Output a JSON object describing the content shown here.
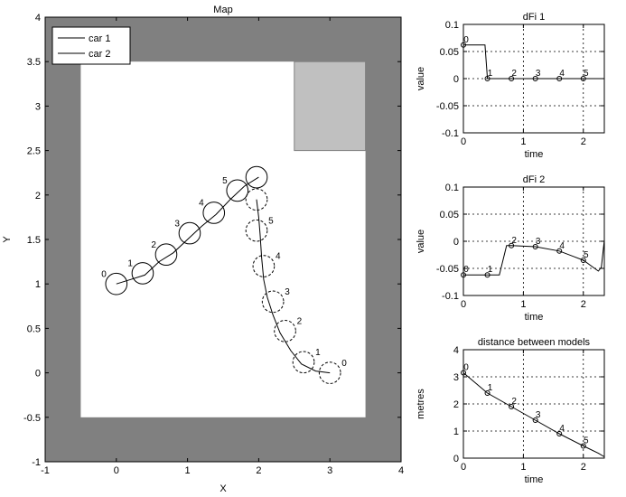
{
  "chart_data": [
    {
      "type": "line",
      "title": "Map",
      "xlabel": "X",
      "ylabel": "Y",
      "xlim": [
        -1,
        4
      ],
      "ylim": [
        -1,
        4
      ],
      "xticks": [
        "-1",
        "0",
        "1",
        "2",
        "3",
        "4"
      ],
      "yticks": [
        "-1",
        "-0.5",
        "0",
        "0.5",
        "1",
        "1.5",
        "2",
        "2.5",
        "3",
        "3.5",
        "4"
      ],
      "grid": false,
      "legend": "top-left",
      "colors": {
        "wall": "#808080",
        "obstacle": "#c0c0c0",
        "floor": "#ffffff"
      },
      "outer_wall": [
        -1,
        -1,
        4,
        4
      ],
      "free_area": [
        -0.5,
        -0.5,
        3.5,
        3.5
      ],
      "obstacle": [
        2.5,
        2.5,
        3.5,
        3.5
      ],
      "marker_radius": 0.15,
      "series": [
        {
          "name": "car 1",
          "style": "solid",
          "path": [
            [
              0,
              1
            ],
            [
              0.2,
              1.05
            ],
            [
              0.4,
              1.1
            ],
            [
              0.6,
              1.25
            ],
            [
              0.8,
              1.35
            ],
            [
              1.0,
              1.5
            ],
            [
              1.2,
              1.65
            ],
            [
              1.4,
              1.78
            ],
            [
              1.6,
              1.95
            ],
            [
              1.8,
              2.1
            ],
            [
              2.0,
              2.2
            ]
          ],
          "markers": [
            {
              "label": "0",
              "x": 0.0,
              "y": 1.0
            },
            {
              "label": "1",
              "x": 0.37,
              "y": 1.12
            },
            {
              "label": "2",
              "x": 0.7,
              "y": 1.33
            },
            {
              "label": "3",
              "x": 1.03,
              "y": 1.57
            },
            {
              "label": "4",
              "x": 1.37,
              "y": 1.8
            },
            {
              "label": "5",
              "x": 1.7,
              "y": 2.05
            },
            {
              "label": "",
              "x": 1.97,
              "y": 2.2
            }
          ]
        },
        {
          "name": "car 2",
          "style": "dashed",
          "path": [
            [
              3,
              0
            ],
            [
              2.8,
              0.02
            ],
            [
              2.6,
              0.1
            ],
            [
              2.45,
              0.25
            ],
            [
              2.3,
              0.45
            ],
            [
              2.2,
              0.65
            ],
            [
              2.12,
              0.85
            ],
            [
              2.07,
              1.05
            ],
            [
              2.04,
              1.3
            ],
            [
              2.02,
              1.55
            ],
            [
              2.0,
              1.75
            ],
            [
              1.97,
              1.95
            ]
          ],
          "markers": [
            {
              "label": "0",
              "x": 3.0,
              "y": 0.0
            },
            {
              "label": "1",
              "x": 2.63,
              "y": 0.12
            },
            {
              "label": "2",
              "x": 2.37,
              "y": 0.47
            },
            {
              "label": "3",
              "x": 2.2,
              "y": 0.8
            },
            {
              "label": "4",
              "x": 2.07,
              "y": 1.2
            },
            {
              "label": "5",
              "x": 1.97,
              "y": 1.6
            },
            {
              "label": "",
              "x": 1.97,
              "y": 1.95
            }
          ]
        }
      ]
    },
    {
      "type": "line",
      "title": "dFi 1",
      "xlabel": "time",
      "ylabel": "value",
      "xlim": [
        0,
        2.35
      ],
      "ylim": [
        -0.1,
        0.1
      ],
      "xticks": [
        "0",
        "1",
        "2"
      ],
      "yticks": [
        "-0.1",
        "-0.05",
        "0",
        "0.05",
        "0.1"
      ],
      "grid": true,
      "series": [
        {
          "x": [
            0,
            0.36,
            0.4,
            2.35
          ],
          "values": [
            0.062,
            0.062,
            0,
            0
          ]
        }
      ],
      "markers": [
        {
          "label": "0",
          "x": 0.0,
          "y": 0.062
        },
        {
          "label": "1",
          "x": 0.4,
          "y": 0
        },
        {
          "label": "2",
          "x": 0.8,
          "y": 0
        },
        {
          "label": "3",
          "x": 1.2,
          "y": 0
        },
        {
          "label": "4",
          "x": 1.6,
          "y": 0
        },
        {
          "label": "5",
          "x": 2.0,
          "y": 0
        }
      ]
    },
    {
      "type": "line",
      "title": "dFi 2",
      "xlabel": "time",
      "ylabel": "value",
      "xlim": [
        0,
        2.35
      ],
      "ylim": [
        -0.1,
        0.1
      ],
      "xticks": [
        "0",
        "1",
        "2"
      ],
      "yticks": [
        "-0.1",
        "-0.05",
        "0",
        "0.05",
        "0.1"
      ],
      "grid": true,
      "series": [
        {
          "x": [
            0,
            0.6,
            0.72,
            0.8,
            1.2,
            1.6,
            2.0,
            2.25,
            2.3,
            2.35
          ],
          "values": [
            -0.062,
            -0.062,
            -0.008,
            -0.008,
            -0.01,
            -0.018,
            -0.035,
            -0.055,
            -0.048,
            0.002
          ]
        }
      ],
      "markers": [
        {
          "label": "0",
          "x": 0.0,
          "y": -0.062
        },
        {
          "label": "1",
          "x": 0.4,
          "y": -0.062
        },
        {
          "label": "2",
          "x": 0.8,
          "y": -0.008
        },
        {
          "label": "3",
          "x": 1.2,
          "y": -0.01
        },
        {
          "label": "4",
          "x": 1.6,
          "y": -0.018
        },
        {
          "label": "5",
          "x": 2.0,
          "y": -0.035
        }
      ]
    },
    {
      "type": "line",
      "title": "distance between models",
      "xlabel": "time",
      "ylabel": "metres",
      "xlim": [
        0,
        2.35
      ],
      "ylim": [
        0,
        4
      ],
      "xticks": [
        "0",
        "1",
        "2"
      ],
      "yticks": [
        "0",
        "1",
        "2",
        "3",
        "4"
      ],
      "grid": true,
      "series": [
        {
          "x": [
            0,
            0.4,
            0.8,
            1.2,
            1.6,
            2.0,
            2.25,
            2.35
          ],
          "values": [
            3.15,
            2.4,
            1.9,
            1.4,
            0.9,
            0.45,
            0.18,
            0.05
          ]
        }
      ],
      "markers": [
        {
          "label": "0",
          "x": 0.0,
          "y": 3.15
        },
        {
          "label": "1",
          "x": 0.4,
          "y": 2.4
        },
        {
          "label": "2",
          "x": 0.8,
          "y": 1.9
        },
        {
          "label": "3",
          "x": 1.2,
          "y": 1.4
        },
        {
          "label": "4",
          "x": 1.6,
          "y": 0.9
        },
        {
          "label": "5",
          "x": 2.0,
          "y": 0.45
        }
      ]
    }
  ]
}
